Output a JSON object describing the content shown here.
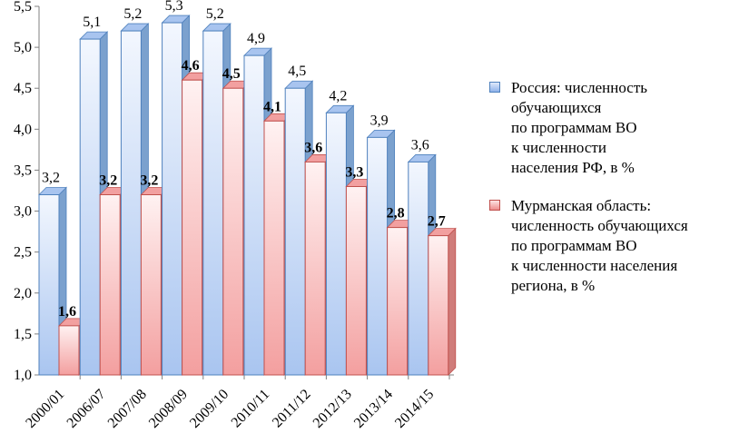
{
  "chart_data": {
    "type": "bar",
    "style": "3d-column",
    "categories": [
      "2000/01",
      "2006/07",
      "2007/08",
      "2008/09",
      "2009/10",
      "2010/11",
      "2011/12",
      "2012/13",
      "2013/14",
      "2014/15"
    ],
    "series": [
      {
        "name": "Россия: численность\nобучающихся\nпо программам ВО\nк численности\nнаселения РФ, в %",
        "values": [
          3.2,
          5.1,
          5.2,
          5.3,
          5.2,
          4.9,
          4.5,
          4.2,
          3.9,
          3.6
        ],
        "labels": [
          "3,2",
          "5,1",
          "5,2",
          "5,3",
          "5,2",
          "4,9",
          "4,5",
          "4,2",
          "3,9",
          "3,6"
        ],
        "color": "#4f81bd",
        "fill_light": "#f2f6fd",
        "fill_dark": "#a8c4ef"
      },
      {
        "name": "Мурманская область:\nчисленность обучающихся\nпо программам ВО\nк численности населения\nрегиона, в %",
        "values": [
          1.6,
          3.2,
          3.2,
          4.6,
          4.5,
          4.1,
          3.6,
          3.3,
          2.8,
          2.7
        ],
        "labels": [
          "1,6",
          "3,2",
          "3,2",
          "4,6",
          "4,5",
          "4,1",
          "3,6",
          "3,3",
          "2,8",
          "2,7"
        ],
        "color": "#c0504d",
        "fill_light": "#fdeeee",
        "fill_dark": "#f2a0a0"
      }
    ],
    "ylim": [
      1.0,
      5.5
    ],
    "yticks": [
      1.0,
      1.5,
      2.0,
      2.5,
      3.0,
      3.5,
      4.0,
      4.5,
      5.0,
      5.5
    ],
    "ytick_labels": [
      "1,0",
      "1,5",
      "2,0",
      "2,5",
      "3,0",
      "3,5",
      "4,0",
      "4,5",
      "5,0",
      "5,5"
    ],
    "grid": false,
    "legend_position": "right",
    "title": "",
    "xlabel": "",
    "ylabel": ""
  }
}
